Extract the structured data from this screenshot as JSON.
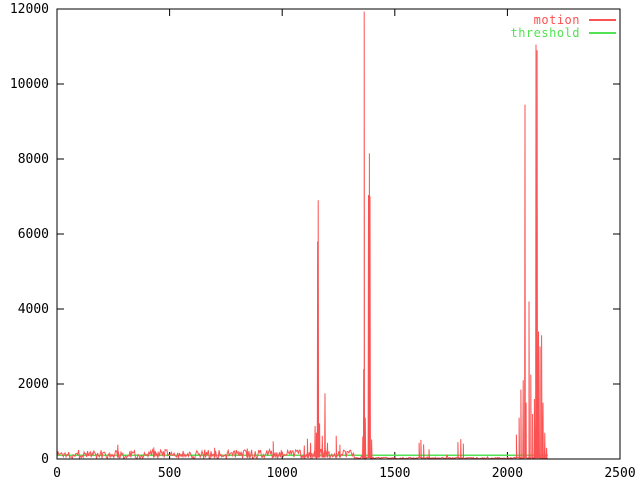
{
  "window": {
    "background": "#ffffff",
    "border_color": "#000000",
    "text_color": "#000000"
  },
  "legend": {
    "position": "top-right",
    "items": [
      {
        "label": "motion",
        "color": "#fa5252"
      },
      {
        "label": "threshold",
        "color": "#53e253"
      }
    ]
  },
  "chart_data": {
    "type": "line",
    "title": "",
    "xlabel": "",
    "ylabel": "",
    "xlim": [
      0,
      2500
    ],
    "ylim": [
      0,
      12000
    ],
    "x_ticks": [
      0,
      500,
      1000,
      1500,
      2000,
      2500
    ],
    "y_ticks": [
      0,
      2000,
      4000,
      6000,
      8000,
      10000,
      12000
    ],
    "grid": false,
    "legend_position": "top-right",
    "series": [
      {
        "name": "motion",
        "color": "#fa5252",
        "style": "noisy-impulses",
        "x_start": 0,
        "x_end": 2180,
        "noise": {
          "step": 4,
          "seed": 1337,
          "regimes": [
            {
              "from": 0,
              "to": 1320,
              "min": 12,
              "max": 250,
              "burst_chance": 0.05,
              "burst_extra": 130
            },
            {
              "from": 1320,
              "to": 2180,
              "min": 4,
              "max": 45,
              "burst_chance": 0.03,
              "burst_extra": 80
            }
          ]
        },
        "peaks": [
          [
            270,
            380
          ],
          [
            430,
            310
          ],
          [
            700,
            300
          ],
          [
            845,
            280
          ],
          [
            960,
            470
          ],
          [
            1098,
            360
          ],
          [
            1112,
            540
          ],
          [
            1126,
            430
          ],
          [
            1146,
            880
          ],
          [
            1152,
            700
          ],
          [
            1157,
            5800
          ],
          [
            1160,
            6900
          ],
          [
            1166,
            950
          ],
          [
            1178,
            620
          ],
          [
            1190,
            1750
          ],
          [
            1201,
            430
          ],
          [
            1240,
            620
          ],
          [
            1256,
            380
          ],
          [
            1358,
            600
          ],
          [
            1362,
            2400
          ],
          [
            1364,
            11930
          ],
          [
            1369,
            1100
          ],
          [
            1383,
            7040
          ],
          [
            1387,
            8150
          ],
          [
            1390,
            7000
          ],
          [
            1397,
            520
          ],
          [
            1608,
            430
          ],
          [
            1616,
            510
          ],
          [
            1628,
            390
          ],
          [
            1652,
            260
          ],
          [
            1780,
            450
          ],
          [
            1793,
            530
          ],
          [
            1804,
            410
          ],
          [
            2040,
            650
          ],
          [
            2052,
            1100
          ],
          [
            2060,
            1850
          ],
          [
            2070,
            2100
          ],
          [
            2078,
            9450
          ],
          [
            2083,
            1500
          ],
          [
            2096,
            4200
          ],
          [
            2104,
            2250
          ],
          [
            2112,
            1200
          ],
          [
            2120,
            1600
          ],
          [
            2127,
            11050
          ],
          [
            2132,
            10900
          ],
          [
            2138,
            3400
          ],
          [
            2145,
            3000
          ],
          [
            2152,
            3300
          ],
          [
            2158,
            1500
          ],
          [
            2166,
            700
          ],
          [
            2174,
            300
          ]
        ]
      },
      {
        "name": "threshold",
        "color": "#53e253",
        "style": "hline",
        "value": 100,
        "x_start": 0,
        "x_end": 2180
      }
    ]
  }
}
